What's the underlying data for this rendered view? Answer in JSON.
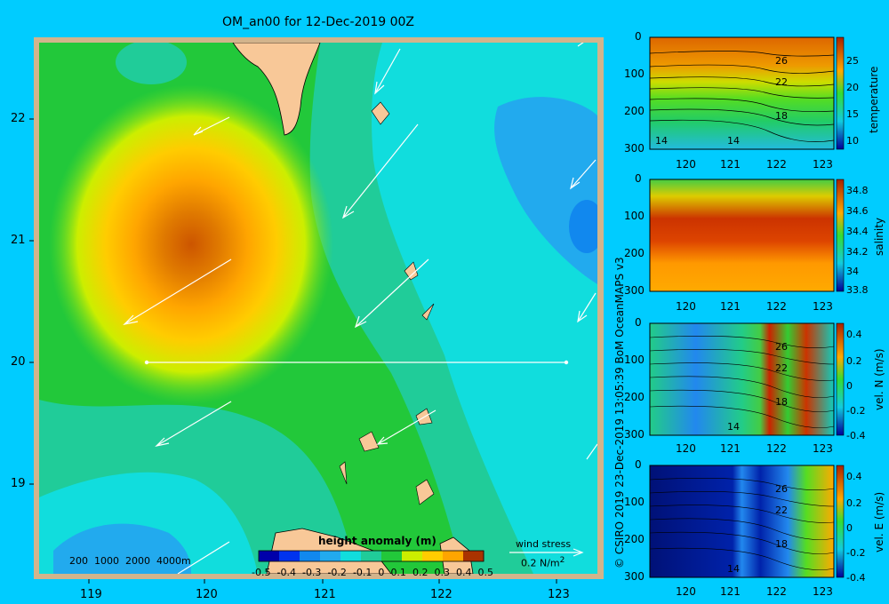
{
  "title": "OM_an00 for 12-Dec-2019 00Z",
  "map": {
    "lon_ticks": [
      "119",
      "120",
      "121",
      "122",
      "123"
    ],
    "lat_ticks": [
      "22",
      "21",
      "20",
      "19"
    ],
    "depth_legend": "200  1000  2000  4000m",
    "colorbar_label": "height anomaly (m)",
    "colorbar_ticks": [
      "-0.5",
      "-0.4",
      "-0.3",
      "-0.2",
      "-0.1",
      "0",
      "0.1",
      "0.2",
      "0.3",
      "0.4",
      "0.5"
    ],
    "wind_label": "wind stress",
    "wind_scale": "0.2 N/m",
    "wind_scale_exp": "2"
  },
  "credit": "© CSIRO 2019   23-Dec-2019 13:05:39 BoM OceanMAPS v3",
  "sections": [
    {
      "name": "temperature",
      "depth_ticks": [
        "0",
        "100",
        "200",
        "300"
      ],
      "lon_ticks": [
        "120",
        "121",
        "122",
        "123"
      ],
      "cbar_ticks": [
        "25",
        "20",
        "15",
        "10"
      ],
      "contour_labels": [
        "26",
        "22",
        "18",
        "14",
        "14"
      ]
    },
    {
      "name": "salinity",
      "depth_ticks": [
        "0",
        "100",
        "200",
        "300"
      ],
      "lon_ticks": [
        "120",
        "121",
        "122",
        "123"
      ],
      "cbar_ticks": [
        "34.8",
        "34.6",
        "34.4",
        "34.2",
        "34",
        "33.8"
      ],
      "contour_labels": []
    },
    {
      "name": "vel. N (m/s)",
      "depth_ticks": [
        "0",
        "100",
        "200",
        "300"
      ],
      "lon_ticks": [
        "120",
        "121",
        "122",
        "123"
      ],
      "cbar_ticks": [
        "0.4",
        "0.2",
        "0",
        "-0.2",
        "-0.4"
      ],
      "contour_labels": [
        "26",
        "22",
        "18",
        "14"
      ]
    },
    {
      "name": "vel. E (m/s)",
      "depth_ticks": [
        "0",
        "100",
        "200",
        "300"
      ],
      "lon_ticks": [
        "120",
        "121",
        "122",
        "123"
      ],
      "cbar_ticks": [
        "0.4",
        "0.2",
        "0",
        "-0.2",
        "-0.4"
      ],
      "contour_labels": [
        "26",
        "22",
        "18",
        "14"
      ]
    }
  ]
}
